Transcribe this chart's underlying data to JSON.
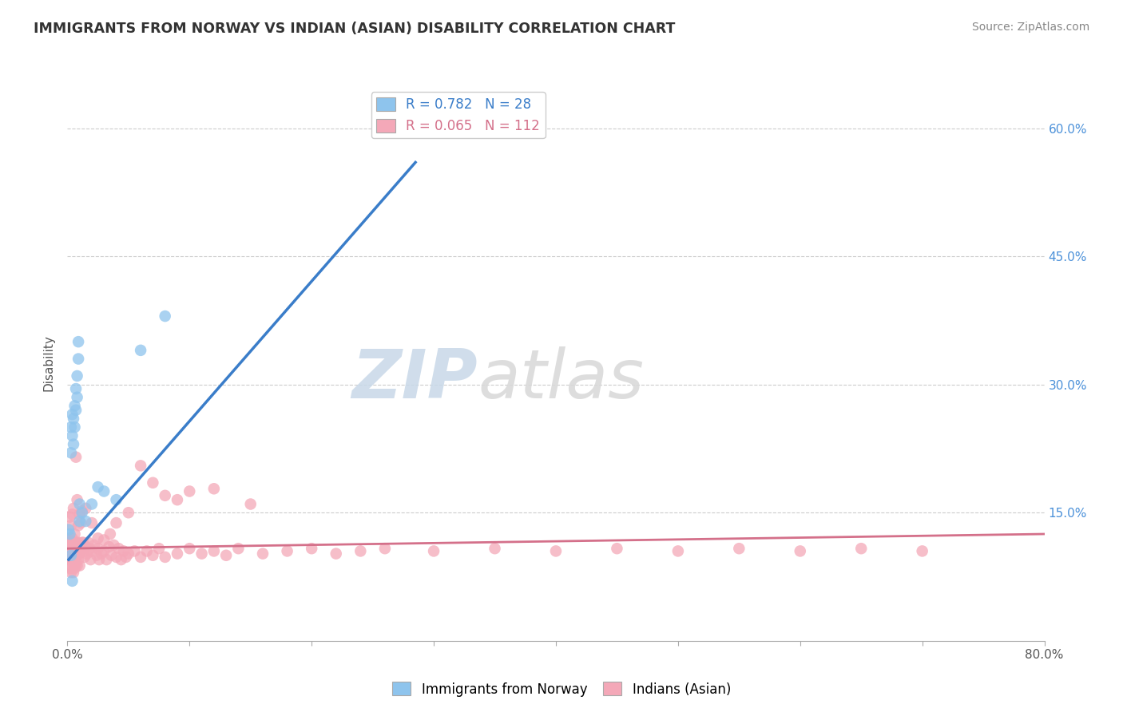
{
  "title": "IMMIGRANTS FROM NORWAY VS INDIAN (ASIAN) DISABILITY CORRELATION CHART",
  "source": "Source: ZipAtlas.com",
  "ylabel": "Disability",
  "xlim": [
    0.0,
    0.8
  ],
  "ylim": [
    0.0,
    0.65
  ],
  "xticks": [
    0.0,
    0.1,
    0.2,
    0.3,
    0.4,
    0.5,
    0.6,
    0.7,
    0.8
  ],
  "xticklabels": [
    "0.0%",
    "",
    "",
    "",
    "",
    "",
    "",
    "",
    "80.0%"
  ],
  "yticks": [
    0.15,
    0.3,
    0.45,
    0.6
  ],
  "yticklabels": [
    "15.0%",
    "30.0%",
    "45.0%",
    "60.0%"
  ],
  "norway_R": 0.782,
  "norway_N": 28,
  "indian_R": 0.065,
  "indian_N": 112,
  "norway_color": "#8EC4ED",
  "norway_line_color": "#3A7DC9",
  "indian_color": "#F4A8B8",
  "indian_line_color": "#D4708A",
  "legend_label_norway": "Immigrants from Norway",
  "legend_label_indian": "Indians (Asian)",
  "watermark_zip": "ZIP",
  "watermark_atlas": "atlas",
  "norway_points_x": [
    0.001,
    0.002,
    0.003,
    0.003,
    0.004,
    0.004,
    0.005,
    0.005,
    0.006,
    0.006,
    0.007,
    0.007,
    0.008,
    0.008,
    0.009,
    0.009,
    0.01,
    0.01,
    0.012,
    0.015,
    0.02,
    0.025,
    0.03,
    0.04,
    0.06,
    0.08,
    0.003,
    0.004
  ],
  "norway_points_y": [
    0.13,
    0.125,
    0.25,
    0.22,
    0.24,
    0.265,
    0.26,
    0.23,
    0.275,
    0.25,
    0.295,
    0.27,
    0.31,
    0.285,
    0.33,
    0.35,
    0.14,
    0.16,
    0.15,
    0.14,
    0.16,
    0.18,
    0.175,
    0.165,
    0.34,
    0.38,
    0.1,
    0.07
  ],
  "norway_line_x": [
    0.001,
    0.285
  ],
  "norway_line_y": [
    0.095,
    0.56
  ],
  "indian_line_x": [
    0.0,
    0.8
  ],
  "indian_line_y": [
    0.108,
    0.125
  ],
  "indian_points_x": [
    0.001,
    0.001,
    0.001,
    0.002,
    0.002,
    0.002,
    0.002,
    0.003,
    0.003,
    0.003,
    0.003,
    0.004,
    0.004,
    0.004,
    0.004,
    0.005,
    0.005,
    0.005,
    0.005,
    0.006,
    0.006,
    0.006,
    0.007,
    0.007,
    0.007,
    0.008,
    0.008,
    0.008,
    0.009,
    0.009,
    0.01,
    0.01,
    0.01,
    0.011,
    0.012,
    0.013,
    0.014,
    0.015,
    0.016,
    0.017,
    0.018,
    0.019,
    0.02,
    0.022,
    0.024,
    0.025,
    0.026,
    0.028,
    0.03,
    0.032,
    0.034,
    0.036,
    0.038,
    0.04,
    0.042,
    0.044,
    0.046,
    0.048,
    0.05,
    0.055,
    0.06,
    0.065,
    0.07,
    0.075,
    0.08,
    0.09,
    0.1,
    0.11,
    0.12,
    0.13,
    0.14,
    0.16,
    0.18,
    0.2,
    0.22,
    0.24,
    0.26,
    0.3,
    0.35,
    0.4,
    0.45,
    0.5,
    0.55,
    0.6,
    0.65,
    0.7,
    0.002,
    0.003,
    0.004,
    0.005,
    0.006,
    0.007,
    0.008,
    0.009,
    0.01,
    0.011,
    0.012,
    0.013,
    0.015,
    0.02,
    0.025,
    0.03,
    0.035,
    0.04,
    0.05,
    0.06,
    0.07,
    0.08,
    0.09,
    0.1,
    0.12,
    0.15
  ],
  "indian_points_y": [
    0.115,
    0.105,
    0.095,
    0.12,
    0.11,
    0.095,
    0.085,
    0.115,
    0.105,
    0.095,
    0.08,
    0.12,
    0.108,
    0.095,
    0.085,
    0.115,
    0.105,
    0.09,
    0.08,
    0.11,
    0.098,
    0.085,
    0.115,
    0.105,
    0.09,
    0.11,
    0.1,
    0.088,
    0.115,
    0.095,
    0.112,
    0.102,
    0.088,
    0.108,
    0.115,
    0.105,
    0.098,
    0.11,
    0.102,
    0.115,
    0.108,
    0.095,
    0.105,
    0.112,
    0.1,
    0.108,
    0.095,
    0.102,
    0.105,
    0.095,
    0.11,
    0.1,
    0.112,
    0.098,
    0.108,
    0.095,
    0.105,
    0.098,
    0.102,
    0.105,
    0.098,
    0.105,
    0.1,
    0.108,
    0.098,
    0.102,
    0.108,
    0.102,
    0.105,
    0.1,
    0.108,
    0.102,
    0.105,
    0.108,
    0.102,
    0.105,
    0.108,
    0.105,
    0.108,
    0.105,
    0.108,
    0.105,
    0.108,
    0.105,
    0.108,
    0.105,
    0.145,
    0.135,
    0.148,
    0.155,
    0.125,
    0.215,
    0.165,
    0.135,
    0.148,
    0.138,
    0.152,
    0.115,
    0.155,
    0.138,
    0.12,
    0.118,
    0.125,
    0.138,
    0.15,
    0.205,
    0.185,
    0.17,
    0.165,
    0.175,
    0.178,
    0.16
  ]
}
